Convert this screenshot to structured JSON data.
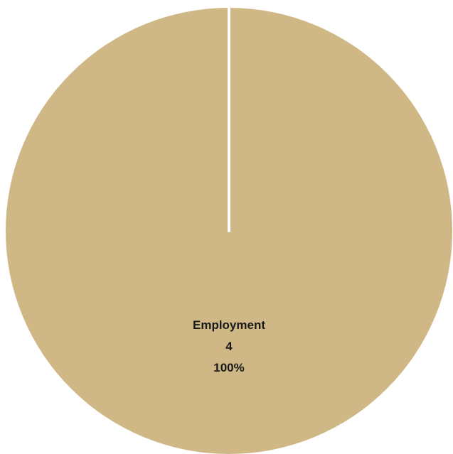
{
  "chart_data": {
    "type": "pie",
    "title": "",
    "slices": [
      {
        "label": "Employment",
        "value": 4,
        "percent": "100%",
        "value_label": "4",
        "color": "#CFB886"
      }
    ],
    "slice_border_color": "#ffffff",
    "legend": "none"
  }
}
